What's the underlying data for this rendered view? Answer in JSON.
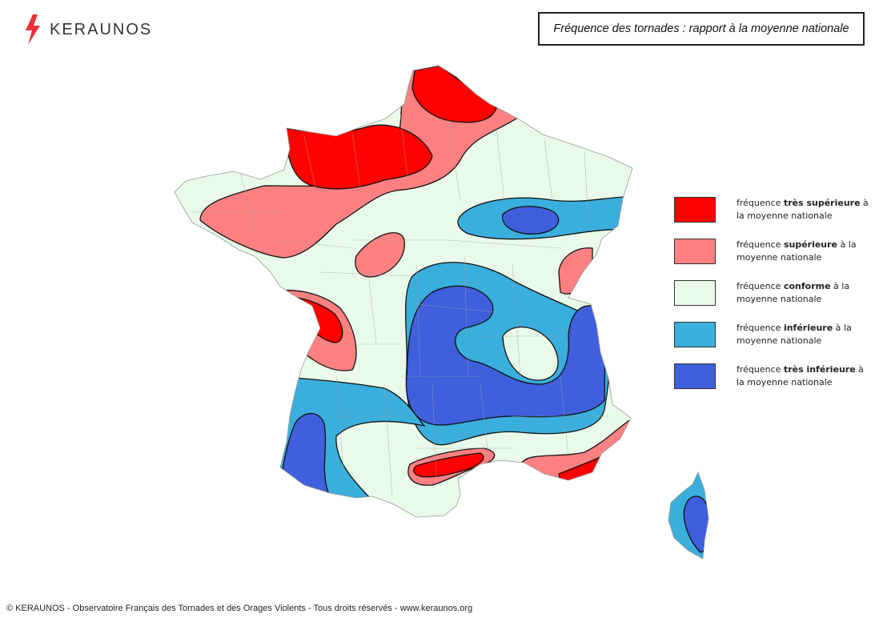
{
  "logo": {
    "name": "KERAUNOS",
    "icon": "lightning-bolt-icon",
    "icon_color": "#e8303a"
  },
  "title": "Fréquence des tornades : rapport à la moyenne nationale",
  "legend": [
    {
      "prefix": "fréquence ",
      "bold": "très supérieure",
      "suffix": " à la moyenne nationale",
      "color": "#ff0000"
    },
    {
      "prefix": "fréquence ",
      "bold": "supérieure",
      "suffix": " à la moyenne nationale",
      "color": "#ff8080"
    },
    {
      "prefix": "fréquence ",
      "bold": "conforme",
      "suffix": " à la moyenne nationale",
      "color": "#eafaea"
    },
    {
      "prefix": "fréquence ",
      "bold": "inférieure",
      "suffix": " à la moyenne nationale",
      "color": "#3aaedc"
    },
    {
      "prefix": "fréquence ",
      "bold": "très inférieure",
      "suffix": " à la moyenne nationale",
      "color": "#3f5fdc"
    }
  ],
  "footer": "© KERAUNOS - Observatoire Français des Tornades et des Orages Violents - Tous droits réservés - www.keraunos.org"
}
